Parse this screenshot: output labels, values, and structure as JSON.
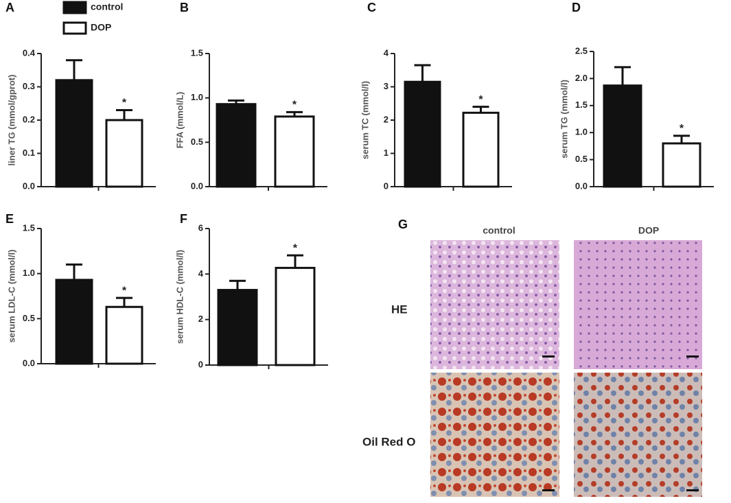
{
  "chart_data": [
    {
      "type": "bar",
      "panel": "A",
      "y_label": "liner TG (mmol/gprot)",
      "categories": [
        null
      ],
      "series": [
        {
          "name": "control",
          "color": "#111111",
          "values": [
            0.32
          ],
          "errors": [
            0.06
          ]
        },
        {
          "name": "DOP",
          "color": "#ffffff",
          "values": [
            0.2
          ],
          "errors": [
            0.03
          ]
        }
      ],
      "annotation": "*",
      "ylim": [
        0,
        0.4
      ],
      "yticks": [
        {
          "value": 0,
          "label": "0.0"
        },
        0.1,
        0.2,
        0.3,
        0.4
      ],
      "legend": "top-left"
    },
    {
      "type": "bar",
      "panel": "B",
      "y_label": "FFA (mmol/L)",
      "categories": [
        null
      ],
      "series": [
        {
          "color": "#111111",
          "values": [
            0.93
          ],
          "errors": [
            0.04
          ]
        },
        {
          "color": "#ffffff",
          "values": [
            0.79
          ],
          "errors": [
            0.05
          ]
        }
      ],
      "annotation": "*",
      "ylim": [
        0,
        1.5
      ],
      "yticks": [
        {
          "value": 0,
          "label": "0.0"
        },
        0.5,
        {
          "value": 1,
          "label": "1.0"
        },
        1.5
      ]
    },
    {
      "type": "bar",
      "panel": "C",
      "y_label": "serum TC  (mmol/l)",
      "categories": [
        null
      ],
      "series": [
        {
          "color": "#111111",
          "values": [
            3.15
          ],
          "errors": [
            0.5
          ]
        },
        {
          "color": "#ffffff",
          "values": [
            2.22
          ],
          "errors": [
            0.18
          ]
        }
      ],
      "annotation": "*",
      "ylim": [
        0,
        4
      ],
      "yticks": [
        0,
        1,
        2,
        3,
        4
      ]
    },
    {
      "type": "bar",
      "panel": "D",
      "y_label": "serum TG (mmol/l)",
      "categories": [
        null
      ],
      "series": [
        {
          "color": "#111111",
          "values": [
            1.87
          ],
          "errors": [
            0.34
          ]
        },
        {
          "color": "#ffffff",
          "values": [
            0.8
          ],
          "errors": [
            0.14
          ]
        }
      ],
      "annotation": "*",
      "ylim": [
        0,
        2.5
      ],
      "yticks": [
        {
          "value": 0,
          "label": "0.0"
        },
        0.5,
        {
          "value": 1,
          "label": "1.0"
        },
        1.5,
        {
          "value": 2,
          "label": "2.0"
        },
        2.5
      ]
    },
    {
      "type": "bar",
      "panel": "E",
      "y_label": "serum LDL-C (mmol/l)",
      "categories": [
        null
      ],
      "series": [
        {
          "color": "#111111",
          "values": [
            0.93
          ],
          "errors": [
            0.17
          ]
        },
        {
          "color": "#ffffff",
          "values": [
            0.63
          ],
          "errors": [
            0.1
          ]
        }
      ],
      "annotation": "*",
      "ylim": [
        0,
        1.5
      ],
      "yticks": [
        {
          "value": 0,
          "label": "0.0"
        },
        0.5,
        {
          "value": 1,
          "label": "1.0"
        },
        1.5
      ]
    },
    {
      "type": "bar",
      "panel": "F",
      "y_label": "serum HDL-C (mmol/l)",
      "categories": [
        null
      ],
      "series": [
        {
          "color": "#111111",
          "values": [
            3.3
          ],
          "errors": [
            0.4
          ]
        },
        {
          "color": "#ffffff",
          "values": [
            4.27
          ],
          "errors": [
            0.55
          ]
        }
      ],
      "annotation": "*",
      "ylim": [
        0,
        6
      ],
      "yticks": [
        0,
        2,
        4,
        6
      ]
    }
  ],
  "panel_g": {
    "panel": "G",
    "columns": [
      "control",
      "DOP"
    ],
    "rows": [
      "HE",
      "Oil Red O"
    ]
  }
}
